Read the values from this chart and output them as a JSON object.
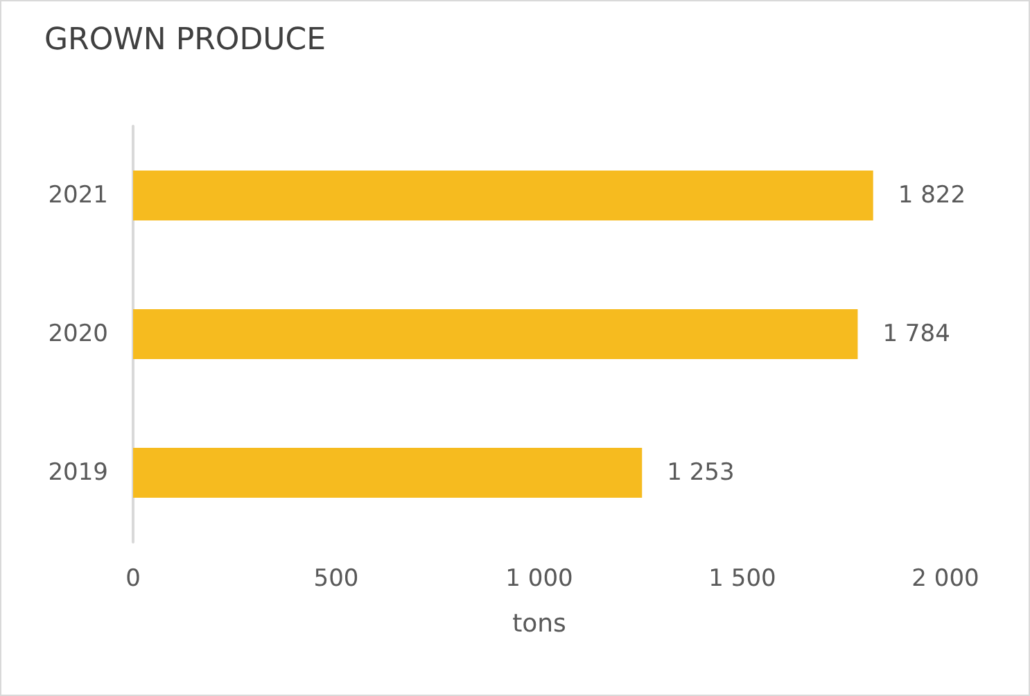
{
  "chart_data": {
    "type": "bar",
    "orientation": "horizontal",
    "title": "GROWN PRODUCE",
    "xlabel": "tons",
    "categories": [
      "2021",
      "2020",
      "2019"
    ],
    "values": [
      1822,
      1784,
      1253
    ],
    "value_labels": [
      "1 822",
      "1 784",
      "1 253"
    ],
    "color": "#f6bb1f",
    "xlim": [
      0,
      2000
    ],
    "xticks": [
      0,
      500,
      {
        "value": 1000,
        "label": "1 000"
      },
      {
        "value": 1500,
        "label": "1 500"
      },
      {
        "value": 2000,
        "label": "2 000"
      }
    ],
    "grid": false
  }
}
